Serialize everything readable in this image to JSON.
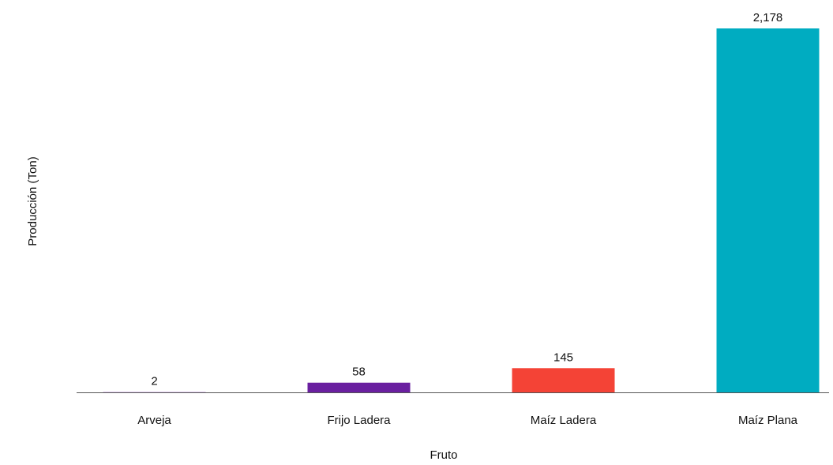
{
  "chart_data": {
    "type": "bar",
    "x_label": "Fruto",
    "y_label": "Producción (Ton)",
    "categories": [
      "Arveja",
      "Frijo Ladera",
      "Maíz Ladera",
      "Maíz Plana"
    ],
    "values": [
      2,
      58,
      145,
      2178
    ],
    "value_labels": [
      "2",
      "58",
      "145",
      "2,178"
    ],
    "colors": [
      "#b07cd8",
      "#6a1fa0",
      "#f44336",
      "#00acc1"
    ]
  }
}
